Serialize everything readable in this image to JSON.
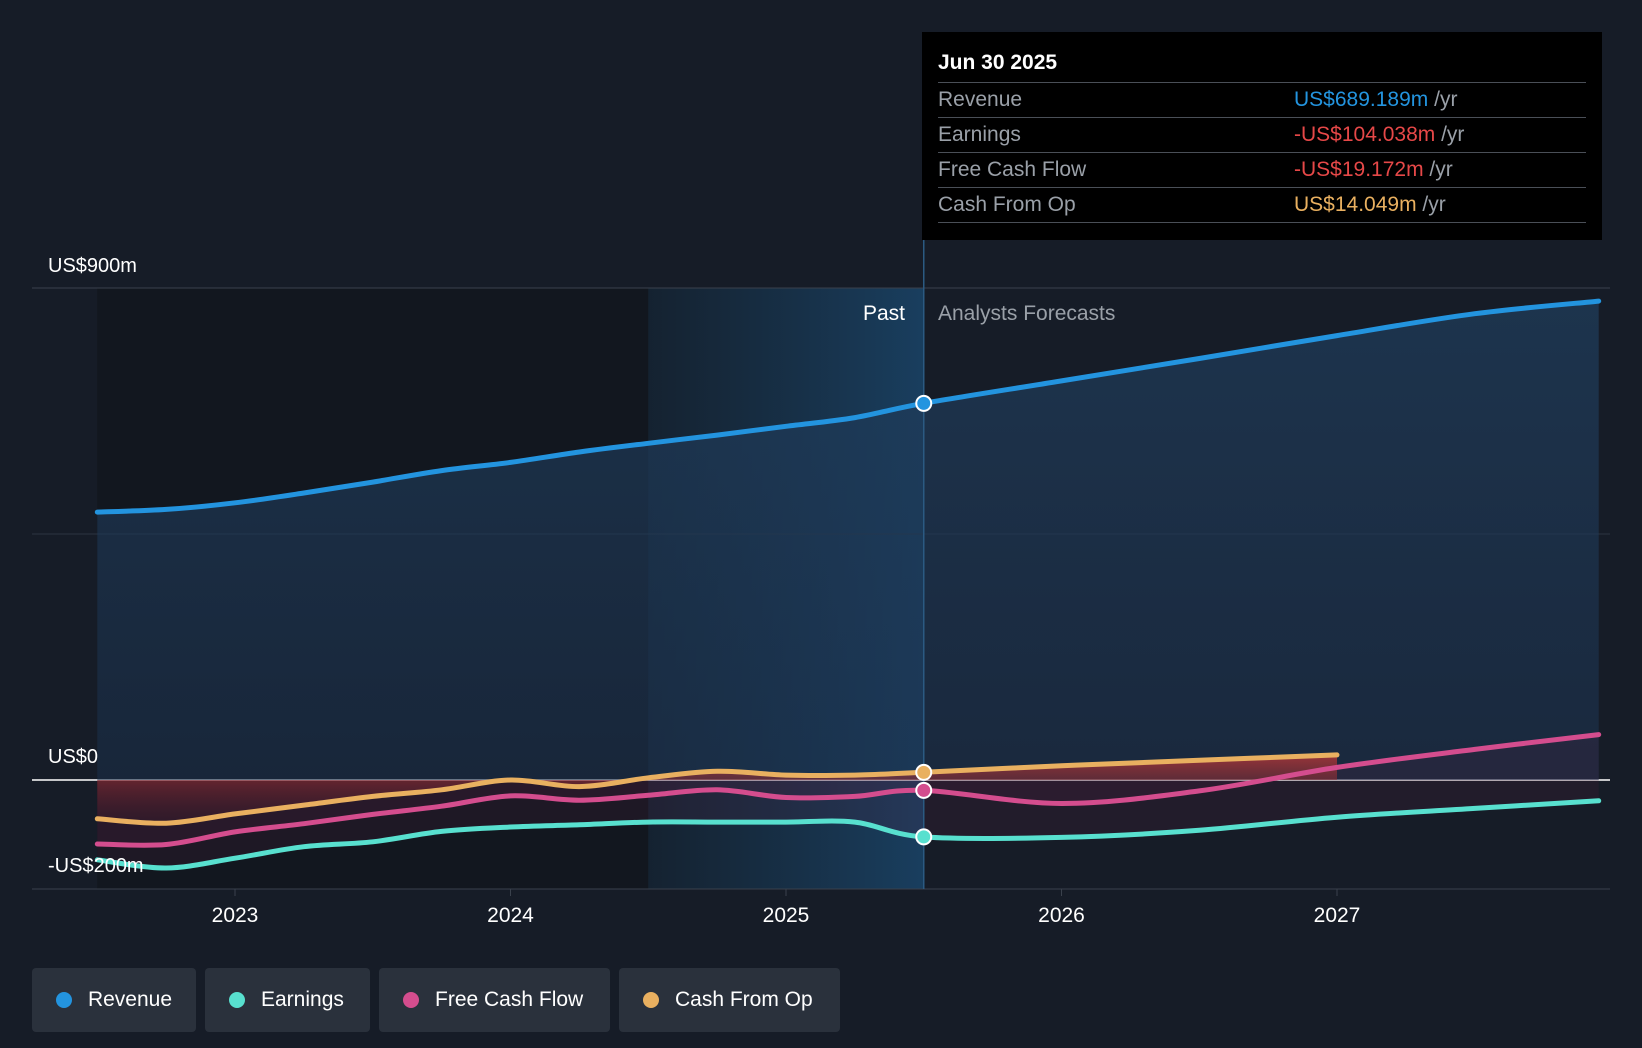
{
  "chart_data": {
    "type": "line",
    "x_axis": {
      "ticks": [
        "2023",
        "2024",
        "2025",
        "2026",
        "2027"
      ]
    },
    "y_axis": {
      "top_label": "US$900m",
      "zero_label": "US$0",
      "bottom_label": "-US$200m",
      "ylim": [
        -200,
        900
      ]
    },
    "past_label": "Past",
    "forecast_label": "Analysts Forecasts",
    "divider_x": 2025.5,
    "series": [
      {
        "name": "Revenue",
        "color": "#2394df",
        "points": [
          [
            2022.5,
            490
          ],
          [
            2022.75,
            495
          ],
          [
            2023.0,
            507
          ],
          [
            2023.25,
            525
          ],
          [
            2023.5,
            545
          ],
          [
            2023.75,
            566
          ],
          [
            2024.0,
            581
          ],
          [
            2024.25,
            600
          ],
          [
            2024.5,
            616
          ],
          [
            2024.75,
            631
          ],
          [
            2025.0,
            647
          ],
          [
            2025.25,
            663
          ],
          [
            2025.5,
            689
          ],
          [
            2026.0,
            730
          ],
          [
            2026.5,
            771
          ],
          [
            2027.0,
            813
          ],
          [
            2027.5,
            853
          ],
          [
            2027.95,
            876
          ]
        ]
      },
      {
        "name": "Earnings",
        "color": "#58e0cf",
        "points": [
          [
            2022.5,
            -146
          ],
          [
            2022.75,
            -161
          ],
          [
            2023.0,
            -143
          ],
          [
            2023.25,
            -122
          ],
          [
            2023.5,
            -113
          ],
          [
            2023.75,
            -94
          ],
          [
            2024.0,
            -86
          ],
          [
            2024.25,
            -82
          ],
          [
            2024.5,
            -77
          ],
          [
            2024.75,
            -77
          ],
          [
            2025.0,
            -77
          ],
          [
            2025.25,
            -77
          ],
          [
            2025.5,
            -104
          ],
          [
            2026.0,
            -105
          ],
          [
            2026.5,
            -92
          ],
          [
            2027.0,
            -68
          ],
          [
            2027.5,
            -52
          ],
          [
            2027.95,
            -38
          ]
        ]
      },
      {
        "name": "Free Cash Flow",
        "color": "#d44d8e",
        "points": [
          [
            2022.5,
            -117
          ],
          [
            2022.75,
            -118
          ],
          [
            2023.0,
            -95
          ],
          [
            2023.25,
            -80
          ],
          [
            2023.5,
            -63
          ],
          [
            2023.75,
            -48
          ],
          [
            2024.0,
            -29
          ],
          [
            2024.25,
            -37
          ],
          [
            2024.5,
            -28
          ],
          [
            2024.75,
            -18
          ],
          [
            2025.0,
            -32
          ],
          [
            2025.25,
            -30
          ],
          [
            2025.5,
            -19
          ],
          [
            2026.0,
            -43
          ],
          [
            2026.5,
            -20
          ],
          [
            2027.0,
            23
          ],
          [
            2027.5,
            56
          ],
          [
            2027.95,
            83
          ]
        ]
      },
      {
        "name": "Cash From Op",
        "color": "#e9b060",
        "points": [
          [
            2022.5,
            -71
          ],
          [
            2022.75,
            -79
          ],
          [
            2023.0,
            -62
          ],
          [
            2023.25,
            -46
          ],
          [
            2023.5,
            -30
          ],
          [
            2023.75,
            -18
          ],
          [
            2024.0,
            0
          ],
          [
            2024.25,
            -12
          ],
          [
            2024.5,
            4
          ],
          [
            2024.75,
            16
          ],
          [
            2025.0,
            9
          ],
          [
            2025.25,
            9
          ],
          [
            2025.5,
            14
          ],
          [
            2026.0,
            26
          ],
          [
            2026.5,
            36
          ],
          [
            2027.0,
            46
          ]
        ]
      }
    ],
    "legend": {
      "placement": "bottom-left"
    }
  },
  "tooltip": {
    "date": "Jun 30 2025",
    "rows": [
      {
        "label": "Revenue",
        "value": "US$689.189m",
        "unit": "/yr",
        "color": "#2394df"
      },
      {
        "label": "Earnings",
        "value": "-US$104.038m",
        "unit": "/yr",
        "color": "#e64848"
      },
      {
        "label": "Free Cash Flow",
        "value": "-US$19.172m",
        "unit": "/yr",
        "color": "#e64848"
      },
      {
        "label": "Cash From Op",
        "value": "US$14.049m",
        "unit": "/yr",
        "color": "#e9b060"
      }
    ]
  },
  "legend": [
    {
      "label": "Revenue",
      "color": "#2394df"
    },
    {
      "label": "Earnings",
      "color": "#58e0cf"
    },
    {
      "label": "Free Cash Flow",
      "color": "#d44d8e"
    },
    {
      "label": "Cash From Op",
      "color": "#e9b060"
    }
  ]
}
